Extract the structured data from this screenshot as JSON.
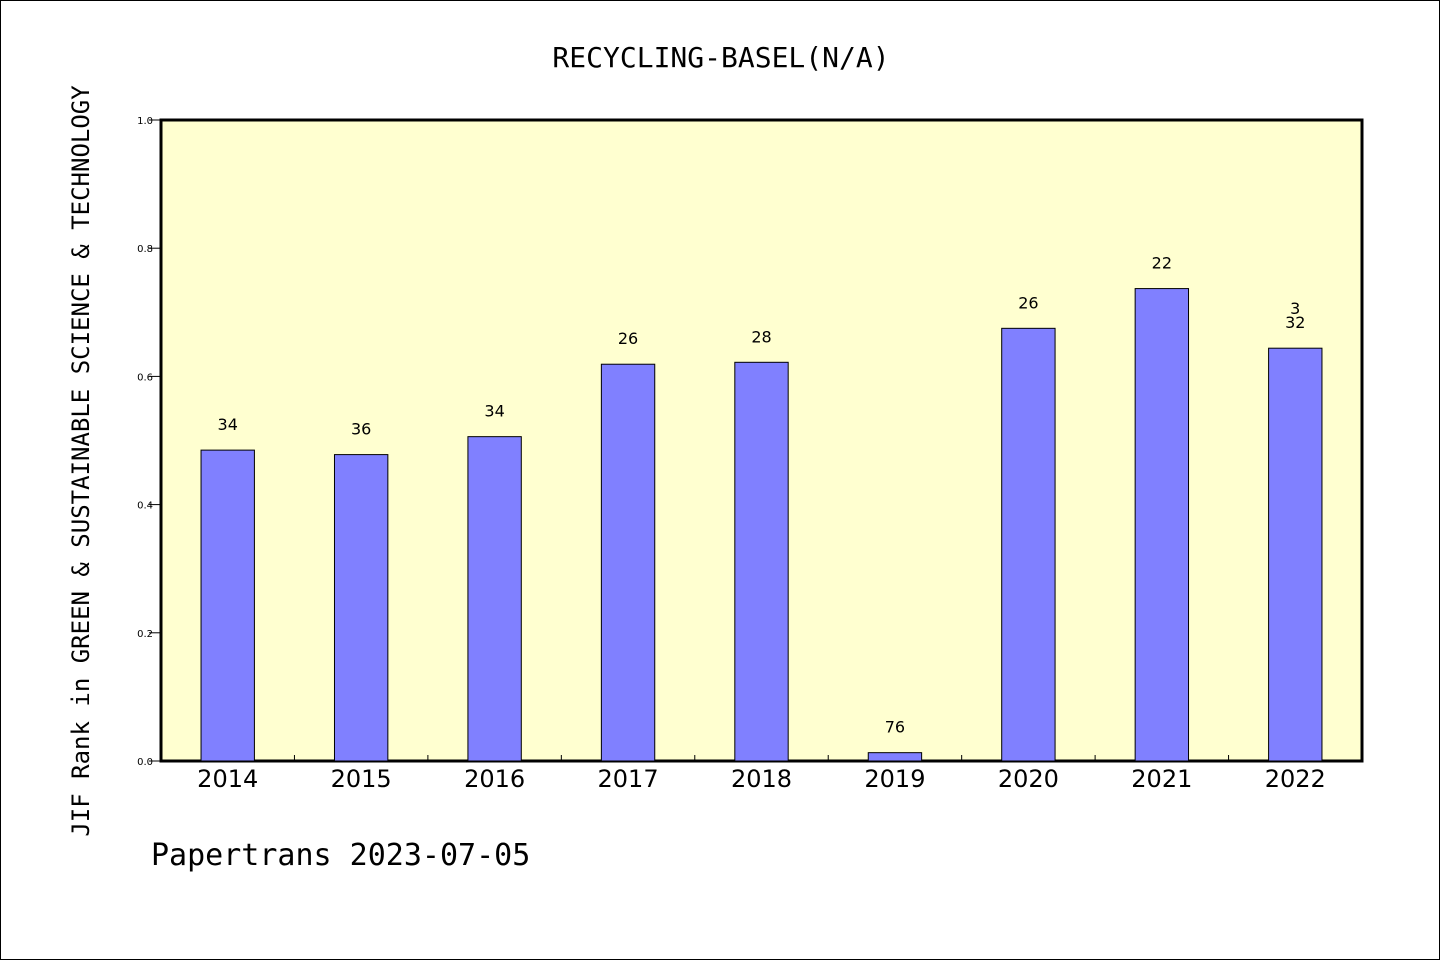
{
  "chart_data": {
    "type": "bar",
    "title": "RECYCLING-BASEL(N/A)",
    "xlabel": "",
    "ylabel": "JIF Rank in GREEN & SUSTAINABLE SCIENCE & TECHNOLOGY",
    "categories": [
      "2014",
      "2015",
      "2016",
      "2017",
      "2018",
      "2019",
      "2020",
      "2021",
      "2022"
    ],
    "values": [
      0.485,
      0.478,
      0.506,
      0.619,
      0.622,
      0.013,
      0.675,
      0.737,
      0.644
    ],
    "data_labels": [
      [
        "34"
      ],
      [
        "36"
      ],
      [
        "34"
      ],
      [
        "26"
      ],
      [
        "28"
      ],
      [
        "76"
      ],
      [
        "26"
      ],
      [
        "22"
      ],
      [
        "3",
        "32"
      ]
    ],
    "ylim": [
      0,
      1.0
    ],
    "yticks": [
      "0.0",
      "0.2",
      "0.4",
      "0.6",
      "0.8",
      "1.0"
    ],
    "grid": false,
    "legend": "none",
    "colors": {
      "plot_background": "#ffffd0",
      "bar_fill": "#8080ff",
      "bar_edge": "#000000",
      "axis": "#000000"
    }
  },
  "footer": {
    "text": "Papertrans 2023-07-05"
  }
}
